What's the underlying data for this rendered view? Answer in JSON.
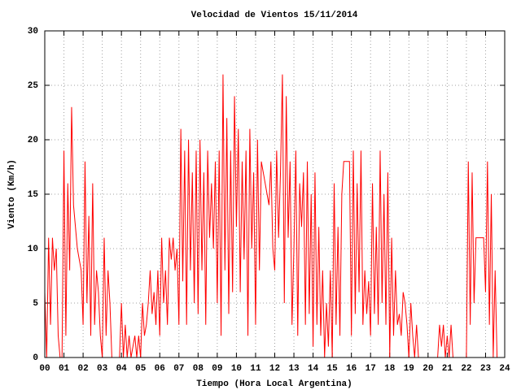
{
  "chart_data": {
    "type": "line",
    "title": "Velocidad de Vientos 15/11/2014",
    "xlabel": "Tiempo (Hora Local Argentina)",
    "ylabel": "Viento (Km/h)",
    "color": "#ff0000",
    "grid": true,
    "xlim": [
      0,
      24
    ],
    "ylim": [
      0,
      30
    ],
    "yticks": [
      0,
      5,
      10,
      15,
      20,
      25,
      30
    ],
    "xticks": [
      {
        "value": 0,
        "label": "00"
      },
      {
        "value": 1,
        "label": "01"
      },
      {
        "value": 2,
        "label": "02"
      },
      {
        "value": 3,
        "label": "03"
      },
      {
        "value": 4,
        "label": "04"
      },
      {
        "value": 5,
        "label": "05"
      },
      {
        "value": 6,
        "label": "06"
      },
      {
        "value": 7,
        "label": "07"
      },
      {
        "value": 8,
        "label": "08"
      },
      {
        "value": 9,
        "label": "09"
      },
      10,
      11,
      12,
      13,
      14,
      15,
      16,
      17,
      18,
      19,
      20,
      21,
      22,
      23,
      24
    ],
    "x": [
      0.0,
      0.1,
      0.2,
      0.3,
      0.4,
      0.5,
      0.6,
      0.7,
      0.8,
      0.9,
      1.0,
      1.1,
      1.2,
      1.3,
      1.4,
      1.5,
      1.6,
      1.7,
      1.8,
      1.9,
      2.0,
      2.1,
      2.2,
      2.3,
      2.4,
      2.5,
      2.6,
      2.7,
      2.8,
      2.9,
      3.0,
      3.1,
      3.2,
      3.3,
      3.4,
      3.5,
      3.6,
      3.7,
      3.8,
      3.9,
      4.0,
      4.1,
      4.2,
      4.3,
      4.4,
      4.5,
      4.6,
      4.7,
      4.8,
      4.9,
      5.0,
      5.1,
      5.2,
      5.3,
      5.4,
      5.5,
      5.6,
      5.7,
      5.8,
      5.9,
      6.0,
      6.1,
      6.2,
      6.3,
      6.4,
      6.5,
      6.6,
      6.7,
      6.8,
      6.9,
      7.0,
      7.1,
      7.2,
      7.3,
      7.4,
      7.5,
      7.6,
      7.7,
      7.8,
      7.9,
      8.0,
      8.1,
      8.2,
      8.3,
      8.4,
      8.5,
      8.6,
      8.7,
      8.8,
      8.9,
      9.0,
      9.1,
      9.2,
      9.3,
      9.4,
      9.5,
      9.6,
      9.7,
      9.8,
      9.9,
      10.0,
      10.1,
      10.2,
      10.3,
      10.4,
      10.5,
      10.6,
      10.7,
      10.8,
      10.9,
      11.0,
      11.1,
      11.2,
      11.3,
      11.4,
      11.5,
      11.6,
      11.7,
      11.8,
      11.9,
      12.0,
      12.1,
      12.2,
      12.3,
      12.4,
      12.5,
      12.6,
      12.7,
      12.8,
      12.9,
      13.0,
      13.1,
      13.2,
      13.3,
      13.4,
      13.5,
      13.6,
      13.7,
      13.8,
      13.9,
      14.0,
      14.1,
      14.2,
      14.3,
      14.4,
      14.5,
      14.6,
      14.7,
      14.8,
      14.9,
      15.0,
      15.1,
      15.2,
      15.3,
      15.4,
      15.5,
      15.6,
      15.7,
      15.8,
      15.9,
      16.0,
      16.1,
      16.2,
      16.3,
      16.4,
      16.5,
      16.6,
      16.7,
      16.8,
      16.9,
      17.0,
      17.1,
      17.2,
      17.3,
      17.4,
      17.5,
      17.6,
      17.7,
      17.8,
      17.9,
      18.0,
      18.1,
      18.2,
      18.3,
      18.4,
      18.5,
      18.6,
      18.7,
      18.8,
      18.9,
      19.0,
      19.1,
      19.2,
      19.3,
      19.4,
      19.5,
      19.6,
      19.7,
      19.8,
      19.9,
      20.0,
      20.1,
      20.2,
      20.3,
      20.4,
      20.5,
      20.6,
      20.7,
      20.8,
      20.9,
      21.0,
      21.1,
      21.2,
      21.3,
      21.4,
      21.5,
      21.6,
      21.7,
      21.8,
      21.9,
      22.0,
      22.1,
      22.2,
      22.3,
      22.4,
      22.5,
      22.6,
      22.7,
      22.8,
      22.9,
      23.0,
      23.1,
      23.2,
      23.3,
      23.4,
      23.5,
      23.6,
      23.7
    ],
    "values": [
      6,
      0,
      11,
      3,
      11,
      8,
      10,
      2,
      0,
      0,
      19,
      2,
      16,
      8,
      23,
      14,
      12,
      10,
      9,
      8,
      3,
      18,
      5,
      13,
      2,
      16,
      3,
      8,
      6,
      2,
      0,
      11,
      2,
      8,
      5,
      0,
      0,
      0,
      0,
      0,
      5,
      0,
      3,
      0,
      2,
      0,
      1,
      2,
      0,
      2,
      0,
      5,
      2,
      3,
      5,
      8,
      4,
      6,
      3,
      8,
      2,
      11,
      5,
      8,
      3,
      11,
      9,
      11,
      8,
      10,
      3,
      21,
      7,
      19,
      3,
      20,
      8,
      17,
      5,
      19,
      4,
      20,
      8,
      17,
      3,
      19,
      11,
      16,
      10,
      18,
      5,
      19,
      2,
      26,
      8,
      22,
      4,
      19,
      6,
      24,
      12,
      21,
      6,
      18,
      9,
      19,
      2,
      21,
      10,
      17,
      3,
      20,
      8,
      18,
      17,
      16,
      15,
      14,
      18,
      10,
      8,
      19,
      11,
      17,
      26,
      5,
      24,
      11,
      18,
      3,
      10,
      19,
      2,
      16,
      12,
      17,
      3,
      18,
      4,
      15,
      1,
      17,
      3,
      12,
      2,
      8,
      0,
      5,
      1,
      8,
      0,
      16,
      3,
      12,
      2,
      15,
      18,
      18,
      18,
      18,
      2,
      19,
      4,
      16,
      6,
      19,
      3,
      8,
      4,
      7,
      2,
      16,
      4,
      12,
      3,
      19,
      5,
      15,
      3,
      17,
      0,
      11,
      2,
      8,
      3,
      4,
      2,
      6,
      5,
      3,
      0,
      5,
      2,
      0,
      3,
      0,
      0,
      0,
      0,
      0,
      0,
      0,
      0,
      0,
      0,
      0,
      3,
      1,
      3,
      0,
      2,
      0,
      3,
      0,
      0,
      0,
      0,
      0,
      0,
      0,
      0,
      18,
      3,
      17,
      5,
      11,
      11,
      11,
      11,
      11,
      6,
      18,
      3,
      15,
      0,
      8,
      0,
      0
    ]
  }
}
